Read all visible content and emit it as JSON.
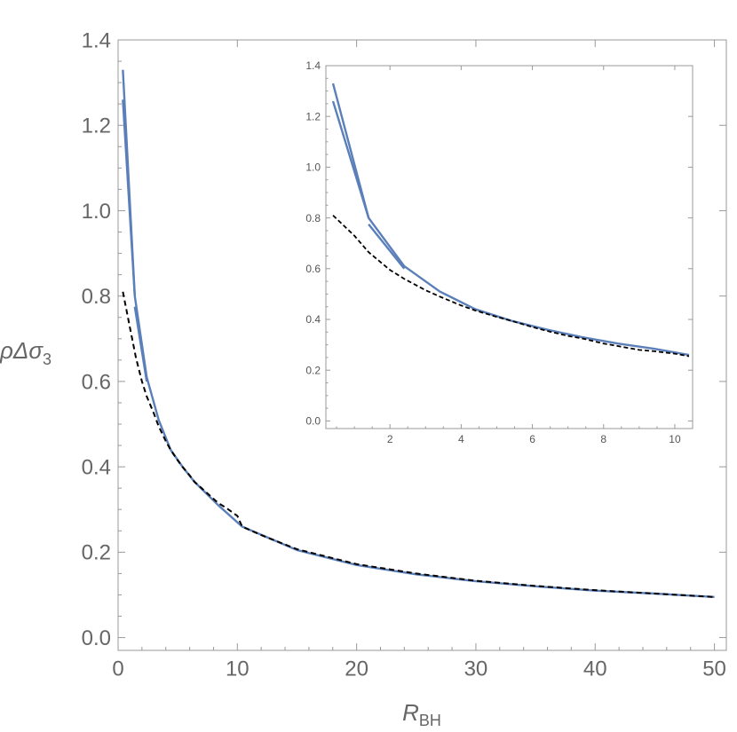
{
  "chart_data": [
    {
      "type": "line",
      "title": "",
      "xlabel": "R_BH",
      "ylabel": "ρΔσ3",
      "xlabel_parts": {
        "main": "R",
        "sub": "BH"
      },
      "ylabel_parts": {
        "main": "ρΔσ",
        "sub": "3"
      },
      "xlim": [
        0,
        51
      ],
      "ylim": [
        -0.03,
        1.4
      ],
      "xticks": [
        0,
        10,
        20,
        30,
        40,
        50
      ],
      "yticks": [
        0.0,
        0.2,
        0.4,
        0.6,
        0.8,
        1.0,
        1.2,
        1.4
      ],
      "xtick_labels": [
        "0",
        "10",
        "20",
        "30",
        "40",
        "50"
      ],
      "ytick_labels": [
        "0.0",
        "0.2",
        "0.4",
        "0.6",
        "0.8",
        "1.0",
        "1.2",
        "1.4"
      ],
      "grid": false,
      "series": [
        {
          "style": "solid",
          "color": "#5b7fb9",
          "x": [
            0.4,
            1.4,
            2.4,
            3.4,
            4.4,
            5.4,
            6.4,
            8.4,
            10.4,
            15,
            20,
            25,
            30,
            35,
            40,
            45,
            50
          ],
          "y": [
            1.33,
            0.8,
            0.61,
            0.51,
            0.44,
            0.4,
            0.365,
            0.31,
            0.26,
            0.205,
            0.17,
            0.148,
            0.132,
            0.12,
            0.11,
            0.103,
            0.095
          ]
        },
        {
          "style": "solid",
          "color": "#5b7fb9",
          "x": [
            0.4,
            1.4
          ],
          "y": [
            1.26,
            0.8
          ]
        },
        {
          "style": "solid",
          "color": "#5b7fb9",
          "x": [
            1.4,
            2.4
          ],
          "y": [
            0.775,
            0.6
          ]
        },
        {
          "style": "dashed",
          "color": "#000000",
          "x": [
            0.4,
            1,
            1.5,
            2,
            2.4,
            3,
            3.4,
            4,
            4.4,
            5,
            5.4,
            6,
            6.4,
            7,
            8,
            8.4,
            9,
            10,
            10.4,
            12,
            15,
            20,
            25,
            30,
            35,
            40,
            45,
            50
          ],
          "y": [
            0.81,
            0.725,
            0.655,
            0.6,
            0.565,
            0.525,
            0.495,
            0.46,
            0.44,
            0.415,
            0.4,
            0.38,
            0.365,
            0.35,
            0.325,
            0.315,
            0.305,
            0.285,
            0.26,
            0.24,
            0.207,
            0.172,
            0.15,
            0.133,
            0.121,
            0.111,
            0.103,
            0.095
          ]
        }
      ]
    },
    {
      "type": "line",
      "title": "",
      "role": "inset",
      "xlim": [
        0.2,
        10.5
      ],
      "ylim": [
        -0.03,
        1.4
      ],
      "xticks": [
        2,
        4,
        6,
        8,
        10
      ],
      "yticks": [
        0.0,
        0.2,
        0.4,
        0.6,
        0.8,
        1.0,
        1.2,
        1.4
      ],
      "xtick_labels": [
        "2",
        "4",
        "6",
        "8",
        "10"
      ],
      "ytick_labels": [
        "0.0",
        "0.2",
        "0.4",
        "0.6",
        "0.8",
        "1.0",
        "1.2",
        "1.4"
      ],
      "grid": false,
      "series": [
        {
          "style": "solid",
          "color": "#5b7fb9",
          "x": [
            0.4,
            1.4,
            2.4,
            3.4,
            4.4,
            5.4,
            6.4,
            7.4,
            8.4,
            9.4,
            10.4
          ],
          "y": [
            1.33,
            0.8,
            0.61,
            0.51,
            0.44,
            0.395,
            0.36,
            0.33,
            0.305,
            0.285,
            0.26
          ]
        },
        {
          "style": "solid",
          "color": "#5b7fb9",
          "x": [
            0.4,
            1.4
          ],
          "y": [
            1.26,
            0.8
          ]
        },
        {
          "style": "solid",
          "color": "#5b7fb9",
          "x": [
            1.4,
            2.4
          ],
          "y": [
            0.775,
            0.6
          ]
        },
        {
          "style": "dashed",
          "color": "#000000",
          "x": [
            0.4,
            1,
            1.4,
            2,
            2.4,
            3,
            3.4,
            4,
            4.4,
            5,
            5.4,
            6,
            6.4,
            7,
            7.4,
            8,
            8.4,
            9,
            9.4,
            10,
            10.4
          ],
          "y": [
            0.81,
            0.73,
            0.665,
            0.595,
            0.56,
            0.515,
            0.49,
            0.455,
            0.435,
            0.41,
            0.395,
            0.37,
            0.355,
            0.335,
            0.325,
            0.305,
            0.295,
            0.28,
            0.275,
            0.265,
            0.255
          ]
        }
      ]
    }
  ]
}
